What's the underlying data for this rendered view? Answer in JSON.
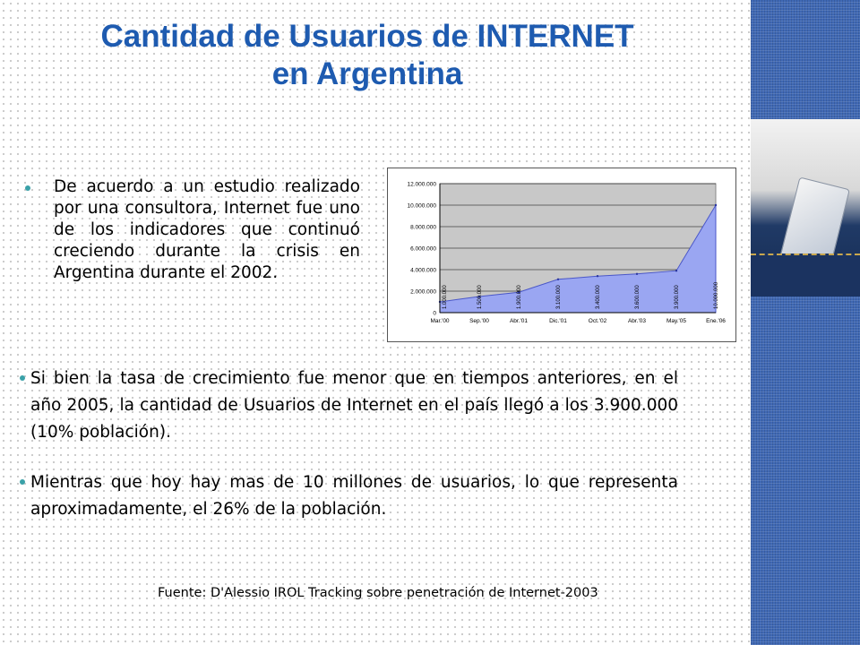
{
  "slide": {
    "title_line1": "Cantidad de Usuarios de INTERNET",
    "title_line2": "en Argentina",
    "bullets": [
      "De acuerdo a un estudio realizado por una consultora, Internet fue uno de los indicadores que continuó creciendo durante la crisis en Argentina durante el 2002.",
      "Si bien la tasa de crecimiento fue menor que en tiempos anteriores, en el año 2005, la cantidad de Usuarios de Internet en el país llegó a los 3.900.000 (10% población).",
      "Mientras que hoy hay mas de 10 millones de usuarios, lo que representa aproximadamente, el 26% de la población."
    ],
    "source": "Fuente: D'Alessio IROL Tracking sobre penetración de Internet-2003"
  },
  "colors": {
    "title": "#1e5bb0",
    "bullet_dot": "#3aa1a8",
    "area_fill": "#9aa6f2",
    "plot_bg": "#c8c8c8",
    "sidebar": "#3f68b4"
  },
  "chart_data": {
    "type": "area",
    "title": "",
    "xlabel": "",
    "ylabel": "",
    "categories": [
      "Mar.'00",
      "Sep.'00",
      "Abr.'01",
      "Dic.'01",
      "Oct.'02",
      "Abr.'03",
      "May.'05",
      "Ene.'06"
    ],
    "values": [
      1000000,
      1500000,
      1900000,
      3100000,
      3400000,
      3600000,
      3900000,
      10000000
    ],
    "data_labels": [
      "1.000.000",
      "1.500.000",
      "1.900.000",
      "3.100.000",
      "3.400.000",
      "3.600.000",
      "3.900.000",
      "10.000.000"
    ],
    "y_ticks": [
      "0",
      "2.000.000",
      "4.000.000",
      "6.000.000",
      "8.000.000",
      "10.000.000",
      "12.000.000"
    ],
    "ylim": [
      0,
      12000000
    ],
    "grid": true,
    "legend": "none"
  }
}
